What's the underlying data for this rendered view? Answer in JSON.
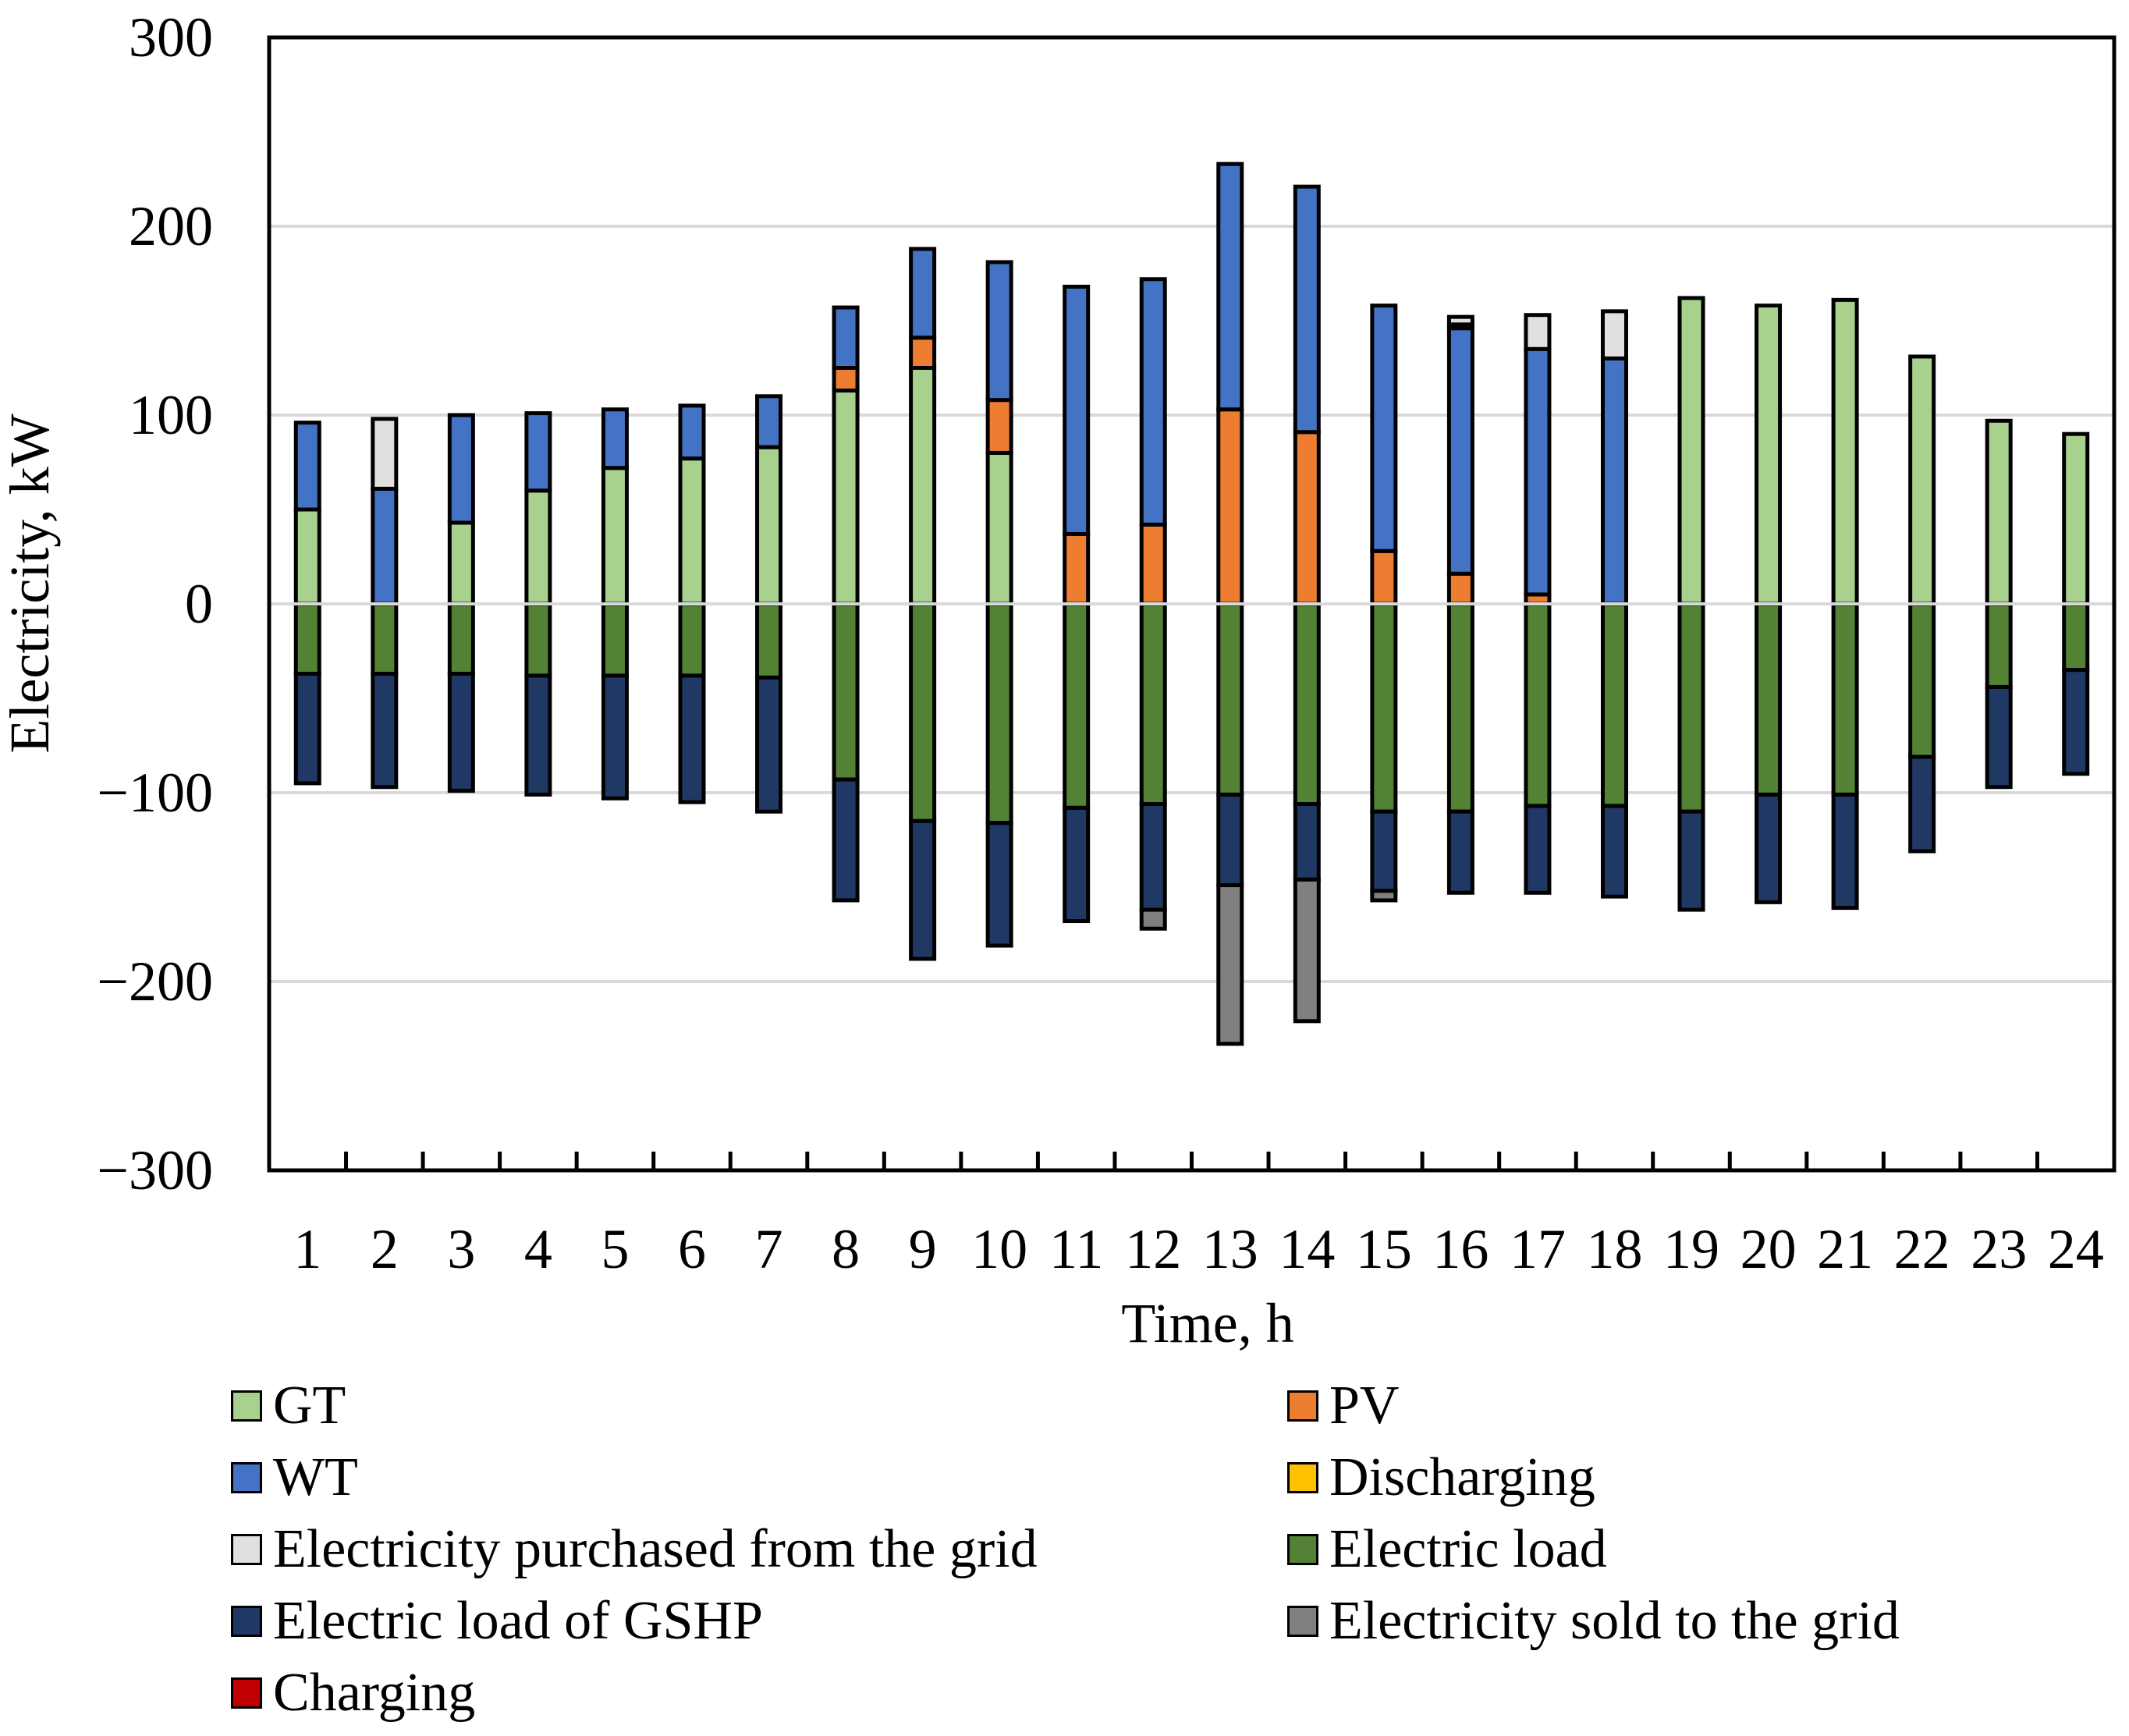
{
  "chart_data": {
    "type": "bar",
    "stacked": true,
    "xlabel": "Time, h",
    "ylabel": "Electricity, kW",
    "ylim": [
      -300,
      300
    ],
    "yticks": [
      300,
      200,
      100,
      0,
      -100,
      -200,
      -300
    ],
    "ytick_labels": [
      "300",
      "200",
      "100",
      "0",
      "−100",
      "−200",
      "−300"
    ],
    "grid": true,
    "legend_position": "bottom",
    "categories": [
      "1",
      "2",
      "3",
      "4",
      "5",
      "6",
      "7",
      "8",
      "9",
      "10",
      "11",
      "12",
      "13",
      "14",
      "15",
      "16",
      "17",
      "18",
      "19",
      "20",
      "21",
      "22",
      "23",
      "24"
    ],
    "series": [
      {
        "name": "GT",
        "color": "#a9d18e",
        "values": [
          50,
          0,
          43,
          60,
          72,
          77,
          83,
          113,
          125,
          80,
          0,
          0,
          0,
          0,
          0,
          0,
          0,
          0,
          162,
          158,
          161,
          131,
          97,
          90
        ]
      },
      {
        "name": "PV",
        "color": "#ed7d31",
        "values": [
          0,
          0,
          0,
          0,
          0,
          0,
          0,
          12,
          16,
          28,
          37,
          42,
          103,
          91,
          28,
          16,
          5,
          0,
          0,
          0,
          0,
          0,
          0,
          0
        ]
      },
      {
        "name": "WT",
        "color": "#4472c4",
        "values": [
          46,
          61,
          57,
          41,
          31,
          28,
          27,
          32,
          47,
          73,
          131,
          130,
          130,
          130,
          130,
          130,
          130,
          130,
          0,
          0,
          0,
          0,
          0,
          0
        ]
      },
      {
        "name": "Discharging",
        "color": "#ffc000",
        "values": [
          0,
          0,
          0,
          0,
          0,
          0,
          0,
          0,
          0,
          0,
          0,
          0,
          0,
          0,
          0,
          2,
          0,
          0,
          0,
          0,
          0,
          0,
          0,
          0
        ]
      },
      {
        "name": "Electricity purchased from the grid",
        "color": "#e0e0e0",
        "values": [
          0,
          37,
          0,
          0,
          0,
          0,
          0,
          0,
          0,
          0,
          0,
          0,
          0,
          0,
          0,
          4,
          18,
          25,
          0,
          0,
          0,
          0,
          0,
          0
        ]
      },
      {
        "name": "Electric load",
        "color": "#548235",
        "values": [
          -37,
          -37,
          -37,
          -38,
          -38,
          -38,
          -39,
          -93,
          -115,
          -116,
          -108,
          -106,
          -101,
          -106,
          -110,
          -110,
          -107,
          -107,
          -110,
          -101,
          -101,
          -81,
          -44,
          -35
        ]
      },
      {
        "name": "Electric load of GSHP",
        "color": "#203864",
        "values": [
          -58,
          -60,
          -62,
          -63,
          -65,
          -67,
          -71,
          -64,
          -73,
          -65,
          -60,
          -56,
          -48,
          -40,
          -42,
          -43,
          -46,
          -48,
          -52,
          -57,
          -60,
          -50,
          -53,
          -55
        ]
      },
      {
        "name": "Electricity sold to the grid",
        "color": "#7f7f7f",
        "values": [
          0,
          0,
          0,
          0,
          0,
          0,
          0,
          0,
          0,
          0,
          0,
          -10,
          -84,
          -75,
          -5,
          0,
          0,
          0,
          0,
          0,
          0,
          0,
          0,
          0
        ]
      },
      {
        "name": "Charging",
        "color": "#c00000",
        "values": [
          0,
          0,
          0,
          0,
          0,
          0,
          0,
          0,
          0,
          0,
          0,
          0,
          0,
          0,
          0,
          0,
          0,
          0,
          0,
          0,
          0,
          0,
          0,
          0
        ]
      }
    ],
    "legend_order": [
      "GT",
      "PV",
      "WT",
      "Discharging",
      "Electricity purchased from the grid",
      "Electric load",
      "Electric load of GSHP",
      "Electricity sold to the grid",
      "Charging"
    ]
  }
}
